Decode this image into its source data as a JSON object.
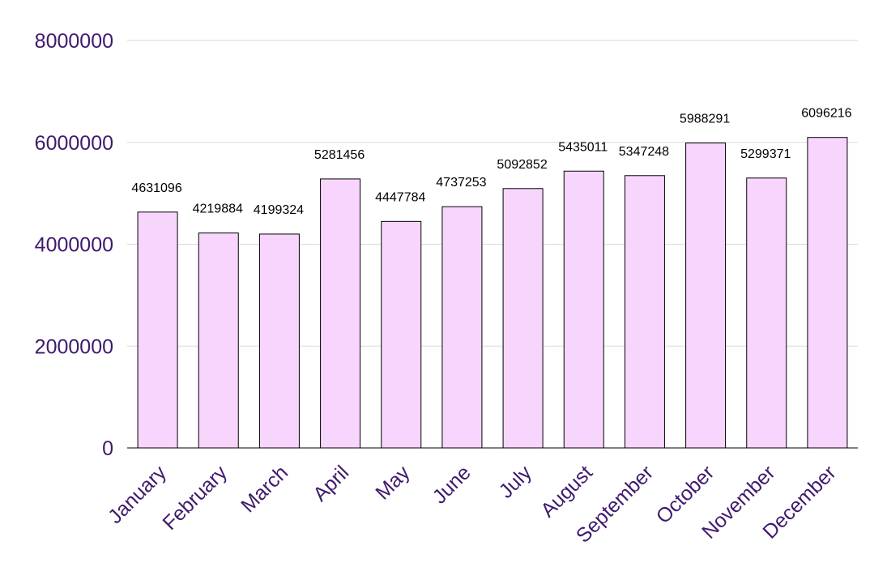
{
  "chart_data": {
    "type": "bar",
    "title": "",
    "xlabel": "",
    "ylabel": "",
    "categories": [
      "January",
      "February",
      "March",
      "April",
      "May",
      "June",
      "July",
      "August",
      "September",
      "October",
      "November",
      "December"
    ],
    "values": [
      4631096,
      4219884,
      4199324,
      5281456,
      4447784,
      4737253,
      5092852,
      5435011,
      5347248,
      5988291,
      5299371,
      6096216
    ],
    "ylim": [
      0,
      8000000
    ],
    "y_ticks": [
      "0",
      "2000000",
      "4000000",
      "6000000",
      "8000000"
    ],
    "y_tick_values": [
      0,
      2000000,
      4000000,
      6000000,
      8000000
    ],
    "data_labels": [
      "4631096",
      "4219884",
      "4199324",
      "5281456",
      "4447784",
      "4737253",
      "5092852",
      "5435011",
      "5347248",
      "5988291",
      "5299371",
      "6096216"
    ],
    "grid": true,
    "legend": "none",
    "colors": {
      "bar_fill": "#f8d5fc",
      "bar_stroke": "#000000",
      "axis_text": "#3f1a6e",
      "gridline": "#d9d9d9",
      "data_label": "#000000"
    }
  }
}
